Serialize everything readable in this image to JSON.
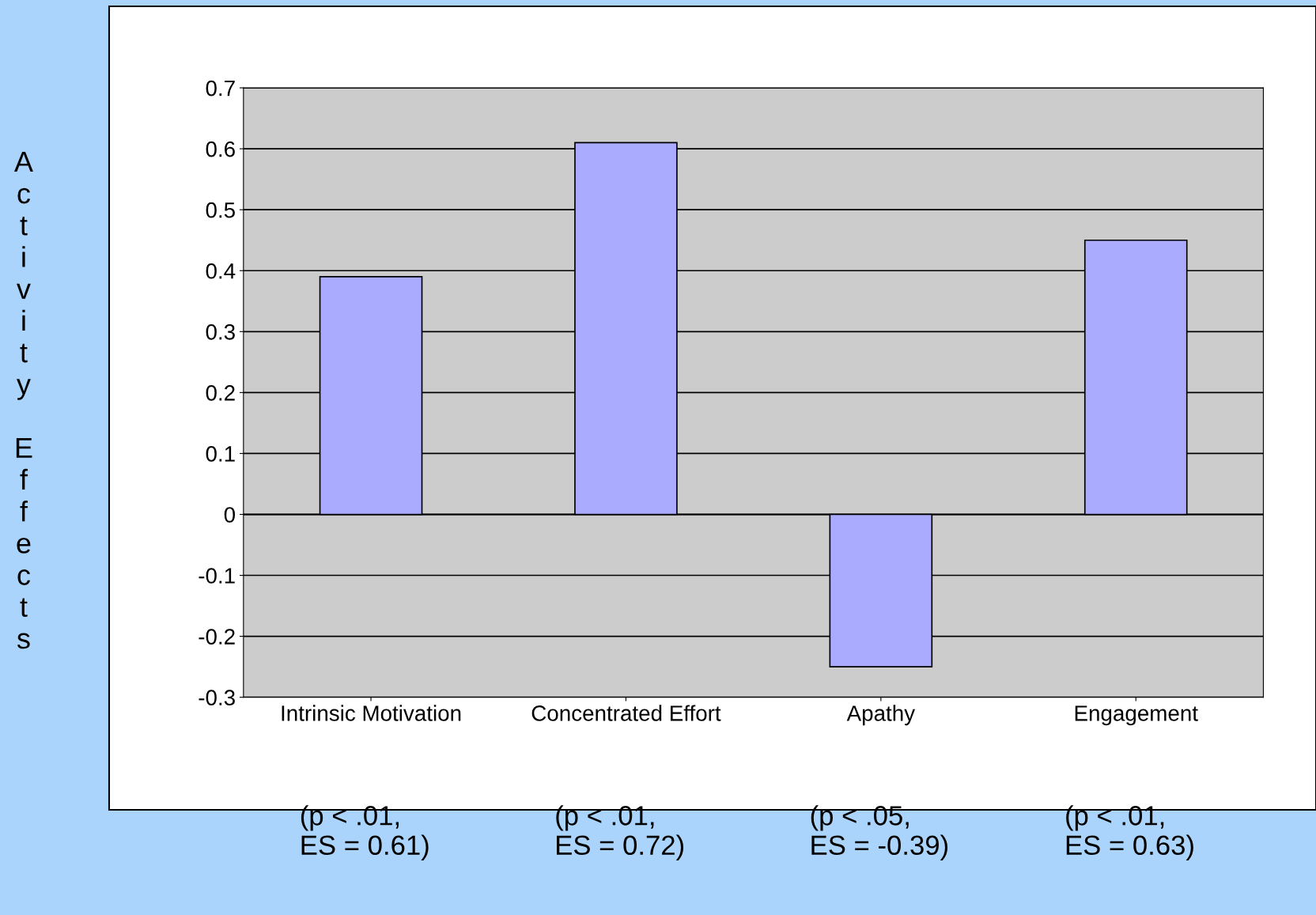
{
  "chart_data": {
    "type": "bar",
    "ylabel": "Activity Effects",
    "categories": [
      "Intrinsic Motivation",
      "Concentrated Effort",
      "Apathy",
      "Engagement"
    ],
    "values": [
      0.39,
      0.61,
      -0.25,
      0.45
    ],
    "color": "#aaaaff",
    "ylim": [
      -0.3,
      0.7
    ],
    "yticks": [
      -0.3,
      -0.2,
      -0.1,
      0,
      0.1,
      0.2,
      0.3,
      0.4,
      0.5,
      0.6,
      0.7
    ],
    "grid": "y",
    "annotations": [
      "(p < .01, ES = 0.61)",
      "(p < .01, ES = 0.72)",
      "(p < .05, ES = -0.39)",
      "(p < .01, ES = 0.63)"
    ]
  }
}
